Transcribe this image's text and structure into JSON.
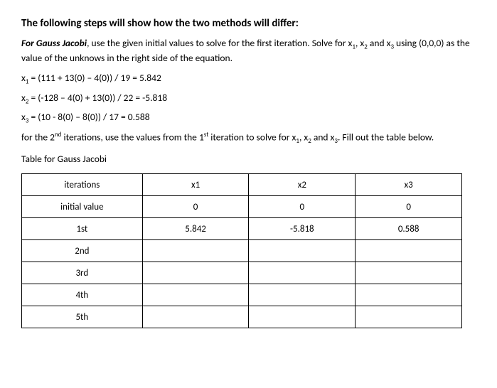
{
  "heading": "The following steps will show how the two methods will differ:",
  "intro_lead": "For Gauss Jacobi",
  "intro_rest": ", use the given initial values to solve for the first iteration.  Solve for x",
  "intro_tail": " using (0,0,0) as the value of the unknows in the right side of the equation.",
  "sub1": "1",
  "sub2": "2",
  "sub3": "3",
  "and": " and x",
  "comma_x": ", x",
  "eq1": " = (111 + 13(0) – 4(0)) / 19 = 5.842",
  "eq2": " = (-128 – 4(0) + 13(0)) / 22 = -5.818",
  "eq3": " = (10 - 8(0) – 8(0)) / 17 = 0.588",
  "iter_note_pre": "for the 2",
  "iter_note_sup1": "nd",
  "iter_note_mid": " iterations, use the values from the 1",
  "iter_note_sup2": "st",
  "iter_note_post": " iteration to solve for x",
  "iter_note_end": ".  Fill out the table below.",
  "table_title": "Table for Gauss Jacobi",
  "table": {
    "headers": {
      "c0": "iterations",
      "c1": "x1",
      "c2": "x2",
      "c3": "x3"
    },
    "rows": [
      {
        "label": "initial value",
        "x1": "0",
        "x2": "0",
        "x3": "0"
      },
      {
        "label": "1st",
        "x1": "5.842",
        "x2": "-5.818",
        "x3": "0.588"
      },
      {
        "label": "2nd",
        "x1": "",
        "x2": "",
        "x3": ""
      },
      {
        "label": "3rd",
        "x1": "",
        "x2": "",
        "x3": ""
      },
      {
        "label": "4th",
        "x1": "",
        "x2": "",
        "x3": ""
      },
      {
        "label": "5th",
        "x1": "",
        "x2": "",
        "x3": ""
      }
    ]
  }
}
